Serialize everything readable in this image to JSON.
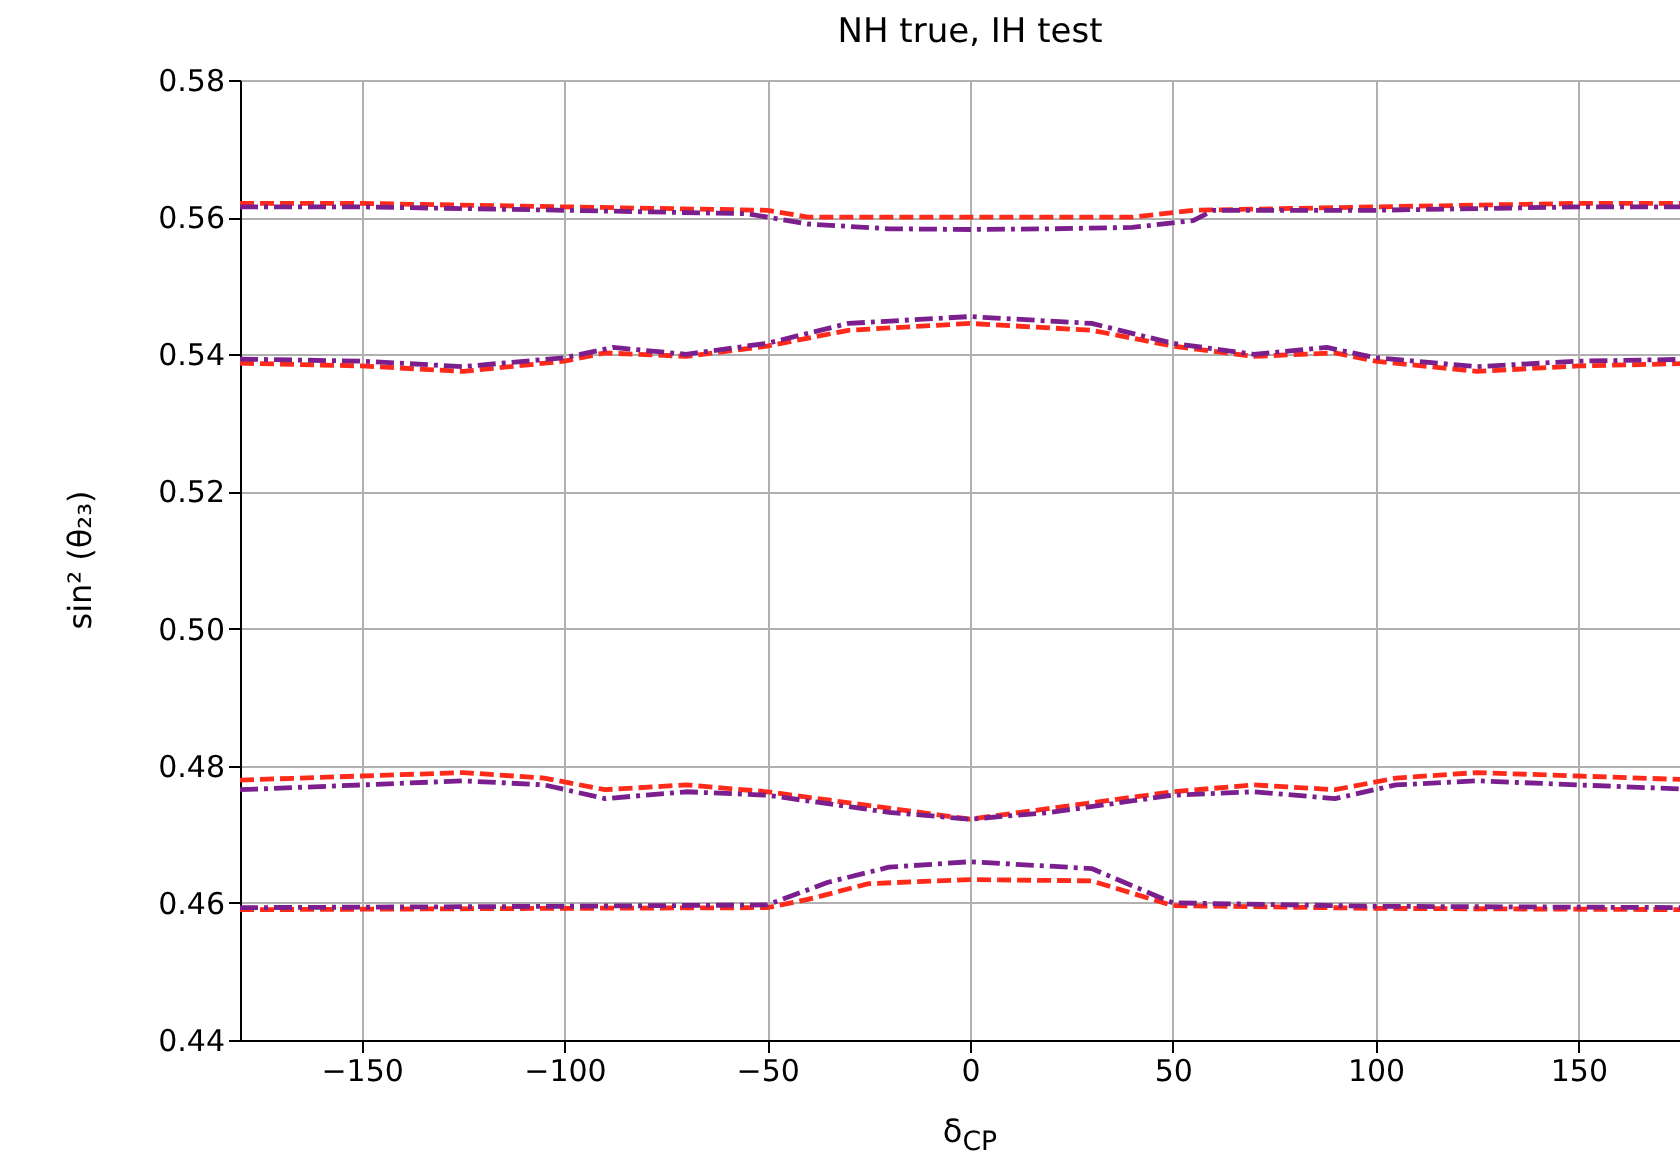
{
  "chart_data": {
    "type": "line",
    "title": "NH true, IH test",
    "xlabel": "δ$_{CP}$",
    "ylabel": "sin² (θ₂₃)",
    "xlim": [
      -180,
      180
    ],
    "ylim": [
      0.44,
      0.58
    ],
    "xticks": [
      -150,
      -100,
      -50,
      0,
      50,
      100,
      150
    ],
    "yticks": [
      0.44,
      0.46,
      0.48,
      {
        "value": 0.5,
        "label": "0.50"
      },
      0.52,
      0.54,
      0.56,
      0.58
    ],
    "grid": true,
    "marker": "none",
    "series": [
      {
        "color": "#ff2a1a",
        "line_style": "dashed",
        "x": [
          -180,
          -150,
          -100,
          -50,
          -40,
          0,
          40,
          55,
          100,
          150,
          180
        ],
        "values": [
          0.562,
          0.562,
          0.5615,
          0.561,
          0.56,
          0.56,
          0.56,
          0.561,
          0.5615,
          0.562,
          0.562
        ]
      },
      {
        "color": "#7b1f8f",
        "line_style": "dashdot",
        "x": [
          -180,
          -150,
          -100,
          -55,
          -40,
          -20,
          0,
          20,
          40,
          55,
          60,
          100,
          150,
          180
        ],
        "values": [
          0.5615,
          0.5615,
          0.561,
          0.5605,
          0.559,
          0.5583,
          0.5582,
          0.5583,
          0.5585,
          0.5595,
          0.561,
          0.561,
          0.5615,
          0.5615
        ]
      },
      {
        "color": "#ff2a1a",
        "line_style": "dashed",
        "x": [
          -180,
          -150,
          -125,
          -100,
          -90,
          -70,
          -50,
          -30,
          0,
          30,
          50,
          70,
          90,
          100,
          125,
          150,
          180
        ],
        "values": [
          0.5387,
          0.5383,
          0.5375,
          0.539,
          0.5402,
          0.5397,
          0.5412,
          0.5435,
          0.5445,
          0.5435,
          0.5412,
          0.5397,
          0.5402,
          0.539,
          0.5375,
          0.5383,
          0.5387
        ]
      },
      {
        "color": "#7b1f8f",
        "line_style": "dashdot",
        "x": [
          -180,
          -150,
          -125,
          -100,
          -88,
          -70,
          -50,
          -30,
          0,
          30,
          50,
          70,
          88,
          100,
          125,
          150,
          180
        ],
        "values": [
          0.5393,
          0.539,
          0.5382,
          0.5395,
          0.541,
          0.54,
          0.5416,
          0.5445,
          0.5455,
          0.5445,
          0.5416,
          0.54,
          0.541,
          0.5395,
          0.5382,
          0.539,
          0.5393
        ]
      },
      {
        "color": "#ff2a1a",
        "line_style": "dashed",
        "x": [
          -180,
          -150,
          -125,
          -105,
          -90,
          -70,
          -50,
          -20,
          0,
          20,
          50,
          70,
          90,
          105,
          125,
          150,
          180
        ],
        "values": [
          0.4779,
          0.4785,
          0.479,
          0.4782,
          0.4765,
          0.4772,
          0.4762,
          0.4738,
          0.4722,
          0.4738,
          0.4762,
          0.4772,
          0.4765,
          0.4782,
          0.479,
          0.4785,
          0.4779
        ]
      },
      {
        "color": "#7b1f8f",
        "line_style": "dashdot",
        "x": [
          -180,
          -150,
          -125,
          -105,
          -90,
          -70,
          -50,
          -20,
          0,
          20,
          50,
          70,
          90,
          105,
          125,
          150,
          180
        ],
        "values": [
          0.4765,
          0.4772,
          0.4778,
          0.4772,
          0.4752,
          0.4762,
          0.4757,
          0.4732,
          0.4722,
          0.4732,
          0.4757,
          0.4762,
          0.4752,
          0.4772,
          0.4778,
          0.4772,
          0.4765
        ]
      },
      {
        "color": "#ff2a1a",
        "line_style": "dashed",
        "x": [
          -180,
          -100,
          -50,
          -40,
          -25,
          0,
          30,
          50,
          100,
          180
        ],
        "values": [
          0.459,
          0.4592,
          0.4593,
          0.4605,
          0.4628,
          0.4634,
          0.4632,
          0.4596,
          0.4592,
          0.459
        ]
      },
      {
        "color": "#7b1f8f",
        "line_style": "dashdot",
        "x": [
          -180,
          -100,
          -50,
          -35,
          -20,
          0,
          30,
          50,
          100,
          180
        ],
        "values": [
          0.4593,
          0.4595,
          0.4597,
          0.463,
          0.4652,
          0.466,
          0.465,
          0.46,
          0.4595,
          0.4593
        ]
      }
    ]
  }
}
